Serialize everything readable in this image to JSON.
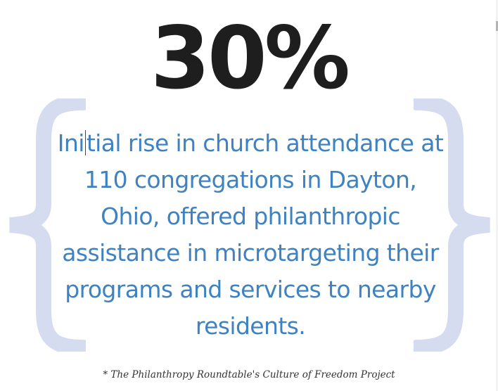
{
  "stat": {
    "value": "30%"
  },
  "quote": {
    "text_before_cursor": "Ini",
    "text_after_cursor": "tial rise in church attendance at 110 congregations in Dayton, Ohio, offered philanthropic assistance in microtargeting their programs and services to nearby residents."
  },
  "source": {
    "text": "* The Philanthropy Roundtable's Culture of Freedom Project"
  },
  "colors": {
    "stat": "#1e1e1e",
    "quote_text": "#3f82c1",
    "braces": "#d5dcef"
  },
  "icons": {
    "left_brace": "left-curly-brace",
    "right_brace": "right-curly-brace"
  }
}
